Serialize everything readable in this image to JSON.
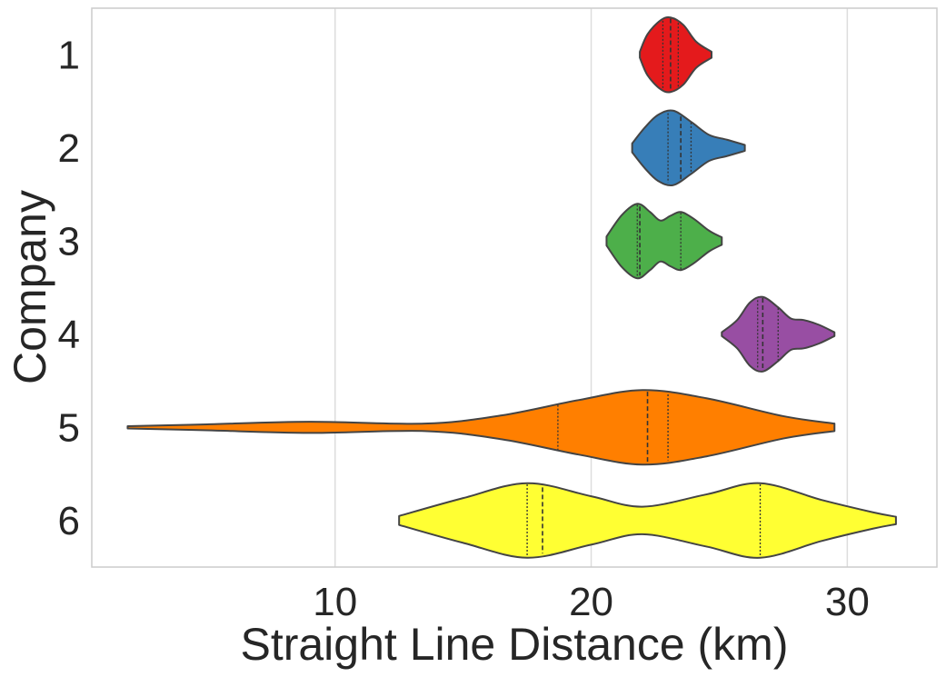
{
  "chart_data": {
    "type": "violin",
    "orientation": "horizontal",
    "xlabel": "Straight Line Distance (km)",
    "ylabel": "Company",
    "xlim": [
      0.5,
      33.5
    ],
    "xticks": [
      "10",
      "20",
      "30"
    ],
    "categories": [
      "1",
      "2",
      "3",
      "4",
      "5",
      "6"
    ],
    "grid": "vertical",
    "inner": "quartile",
    "series": [
      {
        "category": "1",
        "color": "#e41a1c",
        "profile": [
          [
            21.9,
            0.08
          ],
          [
            22.2,
            0.55
          ],
          [
            22.7,
            0.92
          ],
          [
            23.1,
            1.0
          ],
          [
            23.6,
            0.8
          ],
          [
            24.1,
            0.35
          ],
          [
            24.7,
            0.08
          ]
        ],
        "quartiles": [
          22.8,
          23.1,
          23.4
        ]
      },
      {
        "category": "2",
        "color": "#377eb8",
        "profile": [
          [
            21.6,
            0.12
          ],
          [
            22.1,
            0.55
          ],
          [
            22.6,
            0.88
          ],
          [
            23.2,
            1.0
          ],
          [
            23.9,
            0.7
          ],
          [
            24.6,
            0.35
          ],
          [
            25.3,
            0.22
          ],
          [
            26.0,
            0.08
          ]
        ],
        "quartiles": [
          23.0,
          23.5,
          23.9
        ]
      },
      {
        "category": "3",
        "color": "#4daf4a",
        "profile": [
          [
            20.6,
            0.12
          ],
          [
            21.2,
            0.7
          ],
          [
            21.8,
            1.0
          ],
          [
            22.3,
            0.78
          ],
          [
            22.7,
            0.55
          ],
          [
            23.1,
            0.68
          ],
          [
            23.5,
            0.78
          ],
          [
            24.0,
            0.6
          ],
          [
            24.6,
            0.28
          ],
          [
            25.1,
            0.1
          ]
        ],
        "quartiles": [
          21.8,
          21.9,
          23.5
        ]
      },
      {
        "category": "4",
        "color": "#984ea3",
        "profile": [
          [
            25.1,
            0.05
          ],
          [
            25.7,
            0.38
          ],
          [
            26.2,
            0.85
          ],
          [
            26.7,
            1.0
          ],
          [
            27.3,
            0.72
          ],
          [
            27.8,
            0.42
          ],
          [
            28.3,
            0.38
          ],
          [
            28.9,
            0.25
          ],
          [
            29.5,
            0.05
          ]
        ],
        "quartiles": [
          26.5,
          26.7,
          27.3
        ]
      },
      {
        "category": "5",
        "color": "#ff7f00",
        "profile": [
          [
            1.9,
            0.03
          ],
          [
            5.0,
            0.08
          ],
          [
            9.0,
            0.15
          ],
          [
            13.5,
            0.1
          ],
          [
            16.5,
            0.32
          ],
          [
            19.5,
            0.73
          ],
          [
            22.0,
            1.0
          ],
          [
            24.5,
            0.78
          ],
          [
            27.5,
            0.3
          ],
          [
            29.5,
            0.1
          ]
        ],
        "quartiles": [
          18.7,
          22.2,
          23.0
        ]
      },
      {
        "category": "6",
        "color": "#ffff33",
        "profile": [
          [
            12.5,
            0.12
          ],
          [
            15.0,
            0.6
          ],
          [
            17.5,
            1.0
          ],
          [
            20.0,
            0.65
          ],
          [
            22.0,
            0.37
          ],
          [
            24.5,
            0.7
          ],
          [
            26.6,
            1.0
          ],
          [
            29.0,
            0.55
          ],
          [
            31.0,
            0.22
          ],
          [
            31.9,
            0.1
          ]
        ],
        "quartiles": [
          17.5,
          18.1,
          26.6
        ]
      }
    ]
  }
}
